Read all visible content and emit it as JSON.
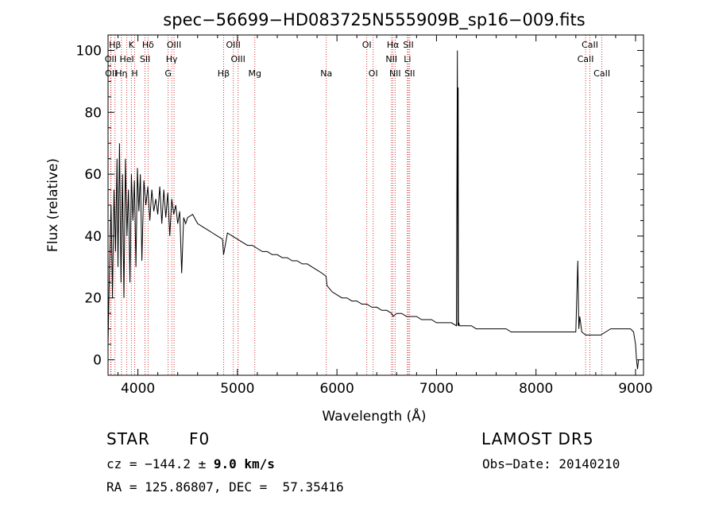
{
  "chart_data": {
    "type": "line",
    "title": "spec−56699−HD083725N555909B_sp16−009.fits",
    "xlabel": "Wavelength (Å)",
    "ylabel": "Flux (relative)",
    "xlim": [
      3700,
      9080
    ],
    "ylim": [
      -5,
      105
    ],
    "xticks": [
      4000,
      5000,
      6000,
      7000,
      8000,
      9000
    ],
    "yticks": [
      0,
      20,
      40,
      60,
      80,
      100
    ],
    "grid": false,
    "line_color": "#000000",
    "marker_color": "#cc0000",
    "series": [
      {
        "x": [
          3700,
          3715,
          3730,
          3745,
          3760,
          3775,
          3790,
          3800,
          3815,
          3830,
          3845,
          3860,
          3875,
          3890,
          3905,
          3920,
          3935,
          3950,
          3965,
          3980,
          3995,
          4010,
          4025,
          4040,
          4060,
          4080,
          4100,
          4120,
          4140,
          4160,
          4180,
          4200,
          4220,
          4240,
          4260,
          4280,
          4300,
          4320,
          4340,
          4360,
          4380,
          4400,
          4420,
          4440,
          4460,
          4480,
          4500,
          4550,
          4600,
          4650,
          4700,
          4750,
          4800,
          4850,
          4861,
          4900,
          4950,
          5000,
          5050,
          5100,
          5150,
          5200,
          5250,
          5300,
          5350,
          5400,
          5450,
          5500,
          5550,
          5600,
          5650,
          5700,
          5750,
          5800,
          5850,
          5890,
          5900,
          5950,
          6000,
          6050,
          6100,
          6150,
          6200,
          6250,
          6300,
          6350,
          6400,
          6450,
          6500,
          6550,
          6563,
          6600,
          6650,
          6700,
          6750,
          6800,
          6850,
          6900,
          6950,
          7000,
          7050,
          7100,
          7150,
          7200,
          7210,
          7215,
          7218,
          7220,
          7225,
          7230,
          7260,
          7300,
          7350,
          7400,
          7450,
          7500,
          7550,
          7600,
          7650,
          7700,
          7750,
          7800,
          7850,
          7900,
          7950,
          8000,
          8050,
          8100,
          8150,
          8200,
          8250,
          8300,
          8350,
          8400,
          8420,
          8430,
          8440,
          8460,
          8500,
          8550,
          8600,
          8650,
          8700,
          8750,
          8800,
          8850,
          8900,
          8950,
          8980,
          9000,
          9010,
          9020,
          9030
        ],
        "y": [
          5,
          30,
          50,
          20,
          55,
          35,
          65,
          30,
          70,
          25,
          60,
          20,
          65,
          40,
          55,
          25,
          60,
          45,
          58,
          30,
          62,
          48,
          60,
          32,
          58,
          50,
          56,
          45,
          55,
          48,
          52,
          47,
          56,
          44,
          55,
          46,
          54,
          40,
          52,
          47,
          50,
          44,
          48,
          28,
          46,
          44,
          46,
          47,
          44,
          43,
          42,
          41,
          40,
          39,
          34,
          41,
          40,
          39,
          38,
          37,
          37,
          36,
          35,
          35,
          34,
          34,
          33,
          33,
          32,
          32,
          31,
          31,
          30,
          29,
          28,
          27,
          24,
          22,
          21,
          20,
          20,
          19,
          19,
          18,
          18,
          17,
          17,
          16,
          16,
          15,
          14,
          15,
          15,
          14,
          14,
          14,
          13,
          13,
          13,
          12,
          12,
          12,
          12,
          11,
          100,
          11,
          88,
          11,
          12,
          11,
          11,
          11,
          11,
          10,
          10,
          10,
          10,
          10,
          10,
          10,
          9,
          9,
          9,
          9,
          9,
          9,
          9,
          9,
          9,
          9,
          9,
          9,
          9,
          9,
          32,
          10,
          14,
          9,
          8,
          8,
          8,
          8,
          9,
          10,
          10,
          10,
          10,
          10,
          9,
          5,
          0,
          -3,
          0
        ]
      }
    ],
    "spectral_lines": [
      {
        "name": "Hβ",
        "x": 3770,
        "row": 0
      },
      {
        "name": "K",
        "x": 3934,
        "row": 0
      },
      {
        "name": "Hδ",
        "x": 4102,
        "row": 0
      },
      {
        "name": "OIII",
        "x": 4363,
        "row": 0
      },
      {
        "name": "OIII",
        "x": 4959,
        "row": 0
      },
      {
        "name": "OI",
        "x": 6300,
        "row": 0
      },
      {
        "name": "Hα",
        "x": 6563,
        "row": 0
      },
      {
        "name": "SII",
        "x": 6717,
        "row": 0
      },
      {
        "name": "CaII",
        "x": 8542,
        "row": 0
      },
      {
        "name": "OII",
        "x": 3727,
        "row": 1
      },
      {
        "name": "HeI",
        "x": 3889,
        "row": 1
      },
      {
        "name": "SII",
        "x": 4072,
        "row": 1
      },
      {
        "name": "Hγ",
        "x": 4340,
        "row": 1
      },
      {
        "name": "OIII",
        "x": 5007,
        "row": 1
      },
      {
        "name": "NII",
        "x": 6548,
        "row": 1
      },
      {
        "name": "Li",
        "x": 6708,
        "row": 1
      },
      {
        "name": "CaII",
        "x": 8498,
        "row": 1
      },
      {
        "name": "OII",
        "x": 3730,
        "row": 2
      },
      {
        "name": "Hη",
        "x": 3835,
        "row": 2
      },
      {
        "name": "H",
        "x": 3968,
        "row": 2
      },
      {
        "name": "G",
        "x": 4304,
        "row": 2
      },
      {
        "name": "Hβ",
        "x": 4861,
        "row": 2
      },
      {
        "name": "Mg",
        "x": 5175,
        "row": 2
      },
      {
        "name": "Na",
        "x": 5893,
        "row": 2
      },
      {
        "name": "OI",
        "x": 6364,
        "row": 2
      },
      {
        "name": "NII",
        "x": 6584,
        "row": 2
      },
      {
        "name": "SII",
        "x": 6731,
        "row": 2
      },
      {
        "name": "CaII",
        "x": 8662,
        "row": 2
      }
    ]
  },
  "info": {
    "class_label": "STAR",
    "subclass": "F0",
    "survey": "LAMOST DR5",
    "cz_prefix": "cz = −144.2 ± ",
    "cz_error": "9.0 km/s",
    "obs_date": "Obs−Date: 20140210",
    "radec": "RA = 125.86807, DEC =  57.35416"
  }
}
